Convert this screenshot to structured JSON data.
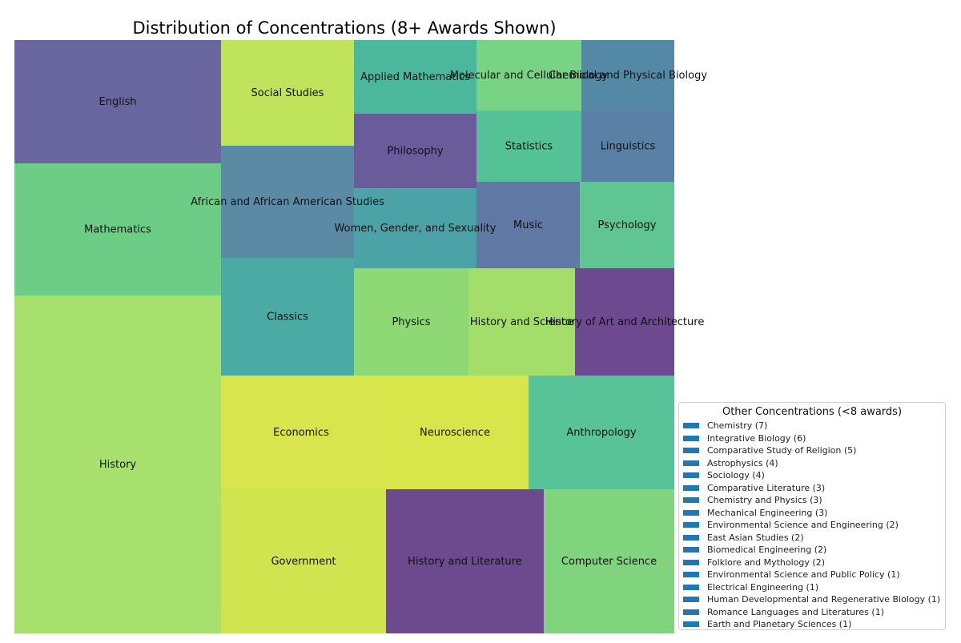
{
  "chart_data": {
    "type": "treemap",
    "title": "Distribution of Concentrations (8+ Awards Shown)",
    "cells": [
      {
        "label": "English",
        "color": "#6a669f"
      },
      {
        "label": "Mathematics",
        "color": "#6dcd87"
      },
      {
        "label": "History",
        "color": "#a7e06d"
      },
      {
        "label": "Social Studies",
        "color": "#bfe35b"
      },
      {
        "label": "African and African American Studies",
        "color": "#5b8aa5"
      },
      {
        "label": "Classics",
        "color": "#4aaba5"
      },
      {
        "label": "Applied Mathematics",
        "color": "#4bb89c"
      },
      {
        "label": "Molecular and Cellular Biology",
        "color": "#78d385"
      },
      {
        "label": "Chemical and Physical Biology",
        "color": "#5489a5"
      },
      {
        "label": "Philosophy",
        "color": "#6a5c9a"
      },
      {
        "label": "Statistics",
        "color": "#55c196"
      },
      {
        "label": "Linguistics",
        "color": "#5a80a6"
      },
      {
        "label": "Women, Gender, and Sexuality",
        "color": "#4ba3a8"
      },
      {
        "label": "Music",
        "color": "#5f78a4"
      },
      {
        "label": "Psychology",
        "color": "#5fc593"
      },
      {
        "label": "Physics",
        "color": "#8ed876"
      },
      {
        "label": "History and Science",
        "color": "#a3de6b"
      },
      {
        "label": "History of Art and Architecture",
        "color": "#6d4a90"
      },
      {
        "label": "Economics",
        "color": "#d8e54d"
      },
      {
        "label": "Neuroscience",
        "color": "#d9e64b"
      },
      {
        "label": "Anthropology",
        "color": "#58c298"
      },
      {
        "label": "Government",
        "color": "#d0e44f"
      },
      {
        "label": "History and Literature",
        "color": "#6c4a8d"
      },
      {
        "label": "Computer Science",
        "color": "#7fd47d"
      }
    ],
    "legend": {
      "title": "Other Concentrations (<8 awards)",
      "placement": "lower-right",
      "swatch_color": "#1f77b4",
      "items": [
        "Chemistry (7)",
        "Integrative Biology (6)",
        "Comparative Study of Religion (5)",
        "Astrophysics (4)",
        "Sociology (4)",
        "Comparative Literature (3)",
        "Chemistry and Physics (3)",
        "Mechanical Engineering (3)",
        "Environmental Science and Engineering (2)",
        "East Asian Studies (2)",
        "Biomedical Engineering (2)",
        "Folklore and Mythology (2)",
        "Environmental Science and Public Policy (1)",
        "Electrical Engineering (1)",
        "Human Developmental and Regenerative Biology (1)",
        "Romance Languages and Literatures (1)",
        "Earth and Planetary Sciences (1)"
      ]
    }
  }
}
